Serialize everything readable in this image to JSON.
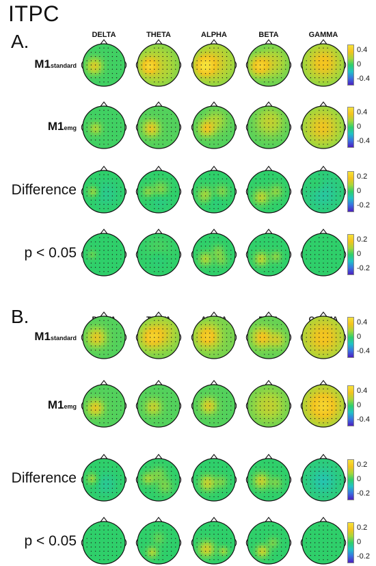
{
  "title": "ITPC",
  "bands": [
    "DELTA",
    "THETA",
    "ALPHA",
    "BETA",
    "GAMMA"
  ],
  "colorscale": {
    "colors": [
      "#4b1fbf",
      "#3a73e0",
      "#22c1c6",
      "#2fcf6a",
      "#a8d63a",
      "#f3c31f",
      "#f6e23a"
    ]
  },
  "panels": [
    {
      "letter": "A.",
      "rows": [
        {
          "label_main": "M1",
          "label_sub": "standard",
          "style": "m1",
          "colorbar_ticks": [
            "0.4",
            "0",
            "-0.4"
          ],
          "maps": [
            {
              "base": 0.05,
              "blobs": [
                [
                  -0.45,
                  0.05,
                  0.25,
                  0.5
                ]
              ]
            },
            {
              "base": 0.15,
              "blobs": [
                [
                  -0.1,
                  0.05,
                  0.7,
                  0.3
                ],
                [
                  -0.45,
                  0.05,
                  0.25,
                  0.5
                ]
              ]
            },
            {
              "base": 0.2,
              "blobs": [
                [
                  -0.45,
                  0.05,
                  0.3,
                  0.6
                ],
                [
                  0.0,
                  -0.1,
                  0.6,
                  0.35
                ]
              ]
            },
            {
              "base": 0.15,
              "blobs": [
                [
                  -0.45,
                  0.05,
                  0.3,
                  0.6
                ],
                [
                  0.2,
                  -0.1,
                  0.45,
                  0.3
                ]
              ]
            },
            {
              "base": 0.2,
              "blobs": [
                [
                  0.0,
                  -0.1,
                  0.55,
                  0.5
                ]
              ]
            }
          ]
        },
        {
          "label_main": "M1",
          "label_sub": "emg",
          "style": "m1",
          "colorbar_ticks": [
            "0.4",
            "0",
            "-0.4"
          ],
          "maps": [
            {
              "base": 0.05,
              "blobs": [
                [
                  -0.4,
                  0.05,
                  0.2,
                  0.3
                ]
              ]
            },
            {
              "base": 0.1,
              "blobs": [
                [
                  -0.35,
                  0.05,
                  0.25,
                  0.5
                ]
              ]
            },
            {
              "base": 0.1,
              "blobs": [
                [
                  -0.35,
                  0.05,
                  0.25,
                  0.5
                ],
                [
                  0.1,
                  -0.3,
                  0.35,
                  0.25
                ]
              ]
            },
            {
              "base": 0.1,
              "blobs": [
                [
                  0.05,
                  -0.25,
                  0.45,
                  0.35
                ]
              ]
            },
            {
              "base": 0.2,
              "blobs": [
                [
                  -0.05,
                  0.0,
                  0.55,
                  0.45
                ]
              ]
            }
          ]
        },
        {
          "label_main": "Difference",
          "label_sub": "",
          "style": "big",
          "colorbar_ticks": [
            "0.2",
            "0",
            "-0.2"
          ],
          "maps": [
            {
              "base": 0.0,
              "blobs": [
                [
                  -0.5,
                  0.0,
                  0.18,
                  0.3
                ],
                [
                  0.1,
                  0.1,
                  0.4,
                  -0.12
                ]
              ]
            },
            {
              "base": 0.0,
              "blobs": [
                [
                  -0.5,
                  0.0,
                  0.18,
                  0.25
                ],
                [
                  0.1,
                  -0.1,
                  0.25,
                  0.25
                ],
                [
                  0.1,
                  0.4,
                  0.3,
                  -0.1
                ]
              ]
            },
            {
              "base": 0.0,
              "blobs": [
                [
                  -0.4,
                  0.15,
                  0.25,
                  0.35
                ],
                [
                  0.35,
                  0.0,
                  0.22,
                  0.25
                ],
                [
                  0.0,
                  0.3,
                  0.3,
                  -0.1
                ]
              ]
            },
            {
              "base": 0.0,
              "blobs": [
                [
                  -0.35,
                  0.25,
                  0.25,
                  0.4
                ],
                [
                  0.35,
                  0.0,
                  0.22,
                  0.25
                ]
              ]
            },
            {
              "base": -0.05,
              "blobs": [
                [
                  0.0,
                  0.1,
                  0.4,
                  -0.15
                ],
                [
                  -0.3,
                  -0.3,
                  0.25,
                  0.1
                ]
              ]
            }
          ]
        },
        {
          "label_main": "p < 0.05",
          "label_sub": "",
          "style": "big",
          "colorbar_ticks": [
            "0.2",
            "0",
            "-0.2"
          ],
          "maps": [
            {
              "base": 0.0,
              "blobs": [
                [
                  -0.55,
                  0.0,
                  0.15,
                  0.15
                ]
              ]
            },
            {
              "base": 0.0,
              "blobs": [
                [
                  0.0,
                  -0.2,
                  0.4,
                  0.1
                ],
                [
                  0.0,
                  0.15,
                  0.3,
                  -0.1
                ]
              ]
            },
            {
              "base": 0.0,
              "blobs": [
                [
                  -0.4,
                  0.2,
                  0.22,
                  0.35
                ],
                [
                  0.2,
                  -0.15,
                  0.2,
                  0.2
                ],
                [
                  0.35,
                  0.25,
                  0.2,
                  0.2
                ]
              ]
            },
            {
              "base": 0.0,
              "blobs": [
                [
                  -0.35,
                  0.2,
                  0.22,
                  0.4
                ],
                [
                  0.35,
                  0.1,
                  0.18,
                  0.25
                ]
              ]
            },
            {
              "base": 0.0,
              "blobs": []
            }
          ]
        }
      ]
    },
    {
      "letter": "B.",
      "rows": [
        {
          "label_main": "M1",
          "label_sub": "standard",
          "style": "m1",
          "colorbar_ticks": [
            "0.4",
            "0",
            "-0.4"
          ],
          "maps": [
            {
              "base": 0.1,
              "blobs": [
                [
                  -0.35,
                  0.0,
                  0.3,
                  0.5
                ]
              ]
            },
            {
              "base": 0.2,
              "blobs": [
                [
                  -0.35,
                  0.0,
                  0.35,
                  0.5
                ],
                [
                  0.2,
                  -0.2,
                  0.45,
                  0.3
                ]
              ]
            },
            {
              "base": 0.2,
              "blobs": [
                [
                  -0.3,
                  -0.05,
                  0.35,
                  0.6
                ]
              ]
            },
            {
              "base": 0.15,
              "blobs": [
                [
                  -0.3,
                  0.0,
                  0.3,
                  0.55
                ],
                [
                  0.4,
                  0.1,
                  0.25,
                  0.3
                ]
              ]
            },
            {
              "base": 0.25,
              "blobs": [
                [
                  0.0,
                  0.0,
                  0.6,
                  0.45
                ]
              ]
            }
          ]
        },
        {
          "label_main": "M1",
          "label_sub": "emg",
          "style": "m1",
          "colorbar_ticks": [
            "0.4",
            "0",
            "-0.4"
          ],
          "maps": [
            {
              "base": 0.1,
              "blobs": [
                [
                  -0.4,
                  0.1,
                  0.25,
                  0.5
                ]
              ]
            },
            {
              "base": 0.1,
              "blobs": [
                [
                  -0.25,
                  0.05,
                  0.25,
                  0.35
                ]
              ]
            },
            {
              "base": 0.1,
              "blobs": [
                [
                  -0.25,
                  0.0,
                  0.25,
                  0.45
                ]
              ]
            },
            {
              "base": 0.15,
              "blobs": [
                [
                  0.0,
                  0.0,
                  0.5,
                  0.3
                ]
              ]
            },
            {
              "base": 0.25,
              "blobs": [
                [
                  0.0,
                  0.0,
                  0.55,
                  0.6
                ]
              ]
            }
          ]
        },
        {
          "label_main": "Difference",
          "label_sub": "",
          "style": "big",
          "colorbar_ticks": [
            "0.2",
            "0",
            "-0.2"
          ],
          "maps": [
            {
              "base": 0.0,
              "blobs": [
                [
                  -0.55,
                  -0.05,
                  0.18,
                  0.3
                ],
                [
                  0.1,
                  0.2,
                  0.35,
                  -0.15
                ]
              ]
            },
            {
              "base": 0.0,
              "blobs": [
                [
                  -0.5,
                  -0.05,
                  0.2,
                  0.3
                ],
                [
                  0.0,
                  -0.25,
                  0.25,
                  0.2
                ],
                [
                  0.3,
                  0.3,
                  0.25,
                  0.2
                ]
              ]
            },
            {
              "base": 0.0,
              "blobs": [
                [
                  -0.3,
                  0.15,
                  0.25,
                  0.45
                ],
                [
                  0.35,
                  0.1,
                  0.2,
                  0.2
                ]
              ]
            },
            {
              "base": 0.0,
              "blobs": [
                [
                  -0.35,
                  0.05,
                  0.25,
                  0.45
                ],
                [
                  0.35,
                  0.15,
                  0.2,
                  0.2
                ]
              ]
            },
            {
              "base": -0.05,
              "blobs": [
                [
                  0.0,
                  0.05,
                  0.4,
                  -0.2
                ]
              ]
            }
          ]
        },
        {
          "label_main": "p < 0.05",
          "label_sub": "",
          "style": "big",
          "colorbar_ticks": [
            "0.2",
            "0",
            "-0.2"
          ],
          "maps": [
            {
              "base": 0.0,
              "blobs": []
            },
            {
              "base": 0.0,
              "blobs": [
                [
                  -0.3,
                  0.45,
                  0.18,
                  0.35
                ],
                [
                  0.0,
                  -0.2,
                  0.2,
                  0.15
                ]
              ]
            },
            {
              "base": 0.0,
              "blobs": [
                [
                  -0.35,
                  0.3,
                  0.25,
                  0.5
                ],
                [
                  0.45,
                  0.4,
                  0.15,
                  0.3
                ]
              ]
            },
            {
              "base": 0.0,
              "blobs": [
                [
                  -0.3,
                  0.4,
                  0.2,
                  0.45
                ],
                [
                  0.2,
                  0.0,
                  0.18,
                  0.2
                ]
              ]
            },
            {
              "base": 0.0,
              "blobs": []
            }
          ]
        }
      ]
    }
  ]
}
